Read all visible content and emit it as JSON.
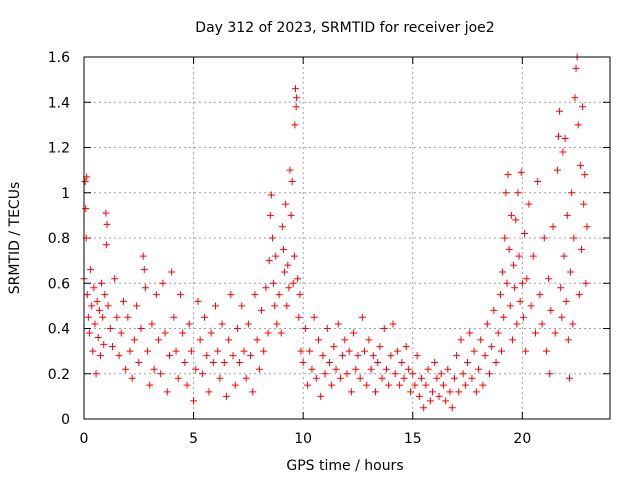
{
  "chart_data": {
    "type": "scatter",
    "title": "Day 312 of 2023, SRMTID for receiver joe2",
    "xlabel": "GPS time / hours",
    "ylabel": "SRMTID / TECUs",
    "xlim": [
      0,
      24
    ],
    "ylim": [
      0,
      1.6
    ],
    "x_ticks": [
      0,
      5,
      10,
      15,
      20
    ],
    "x_tick_labels": [
      "0",
      "5",
      "10",
      "15",
      "20"
    ],
    "y_ticks": [
      0,
      0.2,
      0.4,
      0.6,
      0.8,
      1.0,
      1.2,
      1.4,
      1.6
    ],
    "y_tick_labels": [
      "0",
      "0.2",
      "0.4",
      "0.6",
      "0.8",
      "1",
      "1.2",
      "1.4",
      "1.6"
    ],
    "grid": true,
    "marker": "plus",
    "color": "#ff0000",
    "series": [
      {
        "name": "SRMTID",
        "points": [
          [
            0.0,
            0.62
          ],
          [
            0.05,
            1.05
          ],
          [
            0.08,
            0.93
          ],
          [
            0.1,
            0.8
          ],
          [
            0.12,
            1.07
          ],
          [
            0.15,
            0.55
          ],
          [
            0.2,
            0.45
          ],
          [
            0.25,
            0.38
          ],
          [
            0.3,
            0.66
          ],
          [
            0.35,
            0.5
          ],
          [
            0.4,
            0.3
          ],
          [
            0.45,
            0.58
          ],
          [
            0.5,
            0.42
          ],
          [
            0.55,
            0.2
          ],
          [
            0.6,
            0.52
          ],
          [
            0.65,
            0.36
          ],
          [
            0.7,
            0.48
          ],
          [
            0.75,
            0.28
          ],
          [
            0.8,
            0.6
          ],
          [
            0.85,
            0.45
          ],
          [
            0.9,
            0.33
          ],
          [
            0.95,
            0.55
          ],
          [
            1.0,
            0.91
          ],
          [
            1.02,
            0.77
          ],
          [
            1.05,
            0.86
          ],
          [
            1.1,
            0.5
          ],
          [
            1.2,
            0.4
          ],
          [
            1.3,
            0.32
          ],
          [
            1.4,
            0.62
          ],
          [
            1.5,
            0.45
          ],
          [
            1.6,
            0.28
          ],
          [
            1.7,
            0.38
          ],
          [
            1.8,
            0.52
          ],
          [
            1.9,
            0.22
          ],
          [
            2.0,
            0.45
          ],
          [
            2.1,
            0.3
          ],
          [
            2.2,
            0.18
          ],
          [
            2.3,
            0.35
          ],
          [
            2.4,
            0.5
          ],
          [
            2.5,
            0.25
          ],
          [
            2.6,
            0.4
          ],
          [
            2.7,
            0.72
          ],
          [
            2.75,
            0.66
          ],
          [
            2.8,
            0.58
          ],
          [
            2.9,
            0.3
          ],
          [
            3.0,
            0.15
          ],
          [
            3.1,
            0.42
          ],
          [
            3.2,
            0.22
          ],
          [
            3.3,
            0.55
          ],
          [
            3.4,
            0.35
          ],
          [
            3.5,
            0.2
          ],
          [
            3.6,
            0.6
          ],
          [
            3.7,
            0.38
          ],
          [
            3.8,
            0.12
          ],
          [
            3.9,
            0.28
          ],
          [
            4.0,
            0.65
          ],
          [
            4.1,
            0.45
          ],
          [
            4.2,
            0.3
          ],
          [
            4.3,
            0.18
          ],
          [
            4.4,
            0.55
          ],
          [
            4.5,
            0.38
          ],
          [
            4.6,
            0.25
          ],
          [
            4.7,
            0.15
          ],
          [
            4.8,
            0.42
          ],
          [
            4.9,
            0.3
          ],
          [
            5.0,
            0.08
          ],
          [
            5.1,
            0.22
          ],
          [
            5.2,
            0.52
          ],
          [
            5.3,
            0.35
          ],
          [
            5.4,
            0.2
          ],
          [
            5.5,
            0.45
          ],
          [
            5.6,
            0.28
          ],
          [
            5.7,
            0.12
          ],
          [
            5.8,
            0.38
          ],
          [
            5.9,
            0.25
          ],
          [
            6.0,
            0.5
          ],
          [
            6.1,
            0.3
          ],
          [
            6.2,
            0.18
          ],
          [
            6.3,
            0.42
          ],
          [
            6.4,
            0.25
          ],
          [
            6.5,
            0.1
          ],
          [
            6.6,
            0.35
          ],
          [
            6.7,
            0.55
          ],
          [
            6.8,
            0.28
          ],
          [
            6.9,
            0.15
          ],
          [
            7.0,
            0.4
          ],
          [
            7.1,
            0.25
          ],
          [
            7.2,
            0.5
          ],
          [
            7.3,
            0.3
          ],
          [
            7.4,
            0.18
          ],
          [
            7.5,
            0.42
          ],
          [
            7.6,
            0.28
          ],
          [
            7.7,
            0.12
          ],
          [
            7.8,
            0.55
          ],
          [
            7.9,
            0.35
          ],
          [
            8.0,
            0.22
          ],
          [
            8.1,
            0.48
          ],
          [
            8.2,
            0.3
          ],
          [
            8.3,
            0.58
          ],
          [
            8.4,
            0.38
          ],
          [
            8.45,
            0.7
          ],
          [
            8.5,
            0.9
          ],
          [
            8.55,
            0.99
          ],
          [
            8.6,
            0.8
          ],
          [
            8.65,
            0.6
          ],
          [
            8.7,
            0.5
          ],
          [
            8.75,
            0.72
          ],
          [
            8.8,
            0.42
          ],
          [
            8.9,
            0.55
          ],
          [
            9.0,
            0.38
          ],
          [
            9.05,
            0.85
          ],
          [
            9.1,
            0.75
          ],
          [
            9.15,
            0.65
          ],
          [
            9.2,
            0.95
          ],
          [
            9.25,
            0.5
          ],
          [
            9.3,
            0.68
          ],
          [
            9.35,
            0.58
          ],
          [
            9.4,
            1.1
          ],
          [
            9.45,
            0.9
          ],
          [
            9.5,
            1.05
          ],
          [
            9.55,
            0.6
          ],
          [
            9.6,
            0.72
          ],
          [
            9.62,
            1.3
          ],
          [
            9.65,
            1.46
          ],
          [
            9.68,
            1.38
          ],
          [
            9.7,
            1.42
          ],
          [
            9.75,
            0.62
          ],
          [
            9.8,
            0.45
          ],
          [
            9.85,
            0.55
          ],
          [
            9.9,
            0.3
          ],
          [
            10.0,
            0.25
          ],
          [
            10.1,
            0.4
          ],
          [
            10.2,
            0.15
          ],
          [
            10.3,
            0.3
          ],
          [
            10.4,
            0.22
          ],
          [
            10.5,
            0.45
          ],
          [
            10.6,
            0.18
          ],
          [
            10.7,
            0.35
          ],
          [
            10.8,
            0.1
          ],
          [
            10.9,
            0.28
          ],
          [
            11.0,
            0.2
          ],
          [
            11.1,
            0.4
          ],
          [
            11.2,
            0.25
          ],
          [
            11.3,
            0.15
          ],
          [
            11.4,
            0.32
          ],
          [
            11.5,
            0.22
          ],
          [
            11.6,
            0.42
          ],
          [
            11.7,
            0.18
          ],
          [
            11.8,
            0.28
          ],
          [
            11.9,
            0.35
          ],
          [
            12.0,
            0.2
          ],
          [
            12.1,
            0.3
          ],
          [
            12.2,
            0.12
          ],
          [
            12.3,
            0.38
          ],
          [
            12.4,
            0.22
          ],
          [
            12.5,
            0.28
          ],
          [
            12.6,
            0.18
          ],
          [
            12.7,
            0.45
          ],
          [
            12.8,
            0.3
          ],
          [
            12.9,
            0.15
          ],
          [
            13.0,
            0.35
          ],
          [
            13.1,
            0.22
          ],
          [
            13.2,
            0.28
          ],
          [
            13.3,
            0.12
          ],
          [
            13.4,
            0.25
          ],
          [
            13.5,
            0.32
          ],
          [
            13.6,
            0.18
          ],
          [
            13.7,
            0.4
          ],
          [
            13.8,
            0.22
          ],
          [
            13.9,
            0.15
          ],
          [
            14.0,
            0.28
          ],
          [
            14.1,
            0.42
          ],
          [
            14.2,
            0.2
          ],
          [
            14.3,
            0.3
          ],
          [
            14.4,
            0.15
          ],
          [
            14.5,
            0.25
          ],
          [
            14.6,
            0.18
          ],
          [
            14.7,
            0.32
          ],
          [
            14.8,
            0.22
          ],
          [
            14.9,
            0.12
          ],
          [
            15.0,
            0.2
          ],
          [
            15.1,
            0.15
          ],
          [
            15.2,
            0.28
          ],
          [
            15.3,
            0.1
          ],
          [
            15.4,
            0.18
          ],
          [
            15.5,
            0.05
          ],
          [
            15.6,
            0.15
          ],
          [
            15.7,
            0.22
          ],
          [
            15.8,
            0.08
          ],
          [
            15.9,
            0.12
          ],
          [
            16.0,
            0.25
          ],
          [
            16.1,
            0.18
          ],
          [
            16.2,
            0.1
          ],
          [
            16.3,
            0.2
          ],
          [
            16.4,
            0.15
          ],
          [
            16.5,
            0.08
          ],
          [
            16.6,
            0.22
          ],
          [
            16.7,
            0.12
          ],
          [
            16.8,
            0.05
          ],
          [
            16.9,
            0.18
          ],
          [
            17.0,
            0.28
          ],
          [
            17.1,
            0.12
          ],
          [
            17.2,
            0.35
          ],
          [
            17.3,
            0.2
          ],
          [
            17.4,
            0.15
          ],
          [
            17.5,
            0.25
          ],
          [
            17.6,
            0.38
          ],
          [
            17.7,
            0.18
          ],
          [
            17.8,
            0.3
          ],
          [
            17.9,
            0.12
          ],
          [
            18.0,
            0.22
          ],
          [
            18.1,
            0.35
          ],
          [
            18.2,
            0.15
          ],
          [
            18.3,
            0.28
          ],
          [
            18.4,
            0.42
          ],
          [
            18.5,
            0.2
          ],
          [
            18.6,
            0.32
          ],
          [
            18.7,
            0.48
          ],
          [
            18.8,
            0.25
          ],
          [
            18.9,
            0.38
          ],
          [
            19.0,
            0.55
          ],
          [
            19.05,
            0.3
          ],
          [
            19.1,
            0.65
          ],
          [
            19.15,
            0.45
          ],
          [
            19.2,
            0.8
          ],
          [
            19.25,
            1.0
          ],
          [
            19.3,
            0.6
          ],
          [
            19.35,
            1.08
          ],
          [
            19.4,
            0.75
          ],
          [
            19.45,
            0.5
          ],
          [
            19.5,
            0.9
          ],
          [
            19.55,
            0.35
          ],
          [
            19.6,
            0.68
          ],
          [
            19.65,
            0.58
          ],
          [
            19.7,
            0.88
          ],
          [
            19.75,
            0.42
          ],
          [
            19.8,
            1.0
          ],
          [
            19.85,
            0.72
          ],
          [
            19.9,
            0.52
          ],
          [
            19.95,
            1.09
          ],
          [
            20.0,
            0.6
          ],
          [
            20.05,
            0.45
          ],
          [
            20.1,
            0.82
          ],
          [
            20.15,
            0.3
          ],
          [
            20.2,
            0.62
          ],
          [
            20.3,
            0.95
          ],
          [
            20.4,
            0.5
          ],
          [
            20.5,
            0.72
          ],
          [
            20.6,
            0.38
          ],
          [
            20.7,
            1.05
          ],
          [
            20.8,
            0.55
          ],
          [
            20.9,
            0.42
          ],
          [
            21.0,
            0.8
          ],
          [
            21.1,
            0.3
          ],
          [
            21.2,
            0.62
          ],
          [
            21.25,
            0.2
          ],
          [
            21.3,
            0.48
          ],
          [
            21.4,
            0.85
          ],
          [
            21.5,
            0.38
          ],
          [
            21.6,
            1.1
          ],
          [
            21.65,
            1.25
          ],
          [
            21.7,
            1.36
          ],
          [
            21.75,
            0.58
          ],
          [
            21.8,
            0.45
          ],
          [
            21.85,
            1.18
          ],
          [
            21.9,
            0.72
          ],
          [
            21.95,
            1.24
          ],
          [
            22.0,
            0.52
          ],
          [
            22.05,
            0.9
          ],
          [
            22.1,
            0.35
          ],
          [
            22.15,
            0.18
          ],
          [
            22.2,
            0.65
          ],
          [
            22.25,
            1.0
          ],
          [
            22.3,
            0.42
          ],
          [
            22.35,
            0.8
          ],
          [
            22.4,
            1.42
          ],
          [
            22.45,
            1.55
          ],
          [
            22.5,
            1.6
          ],
          [
            22.55,
            1.3
          ],
          [
            22.6,
            0.55
          ],
          [
            22.65,
            1.12
          ],
          [
            22.7,
            0.75
          ],
          [
            22.75,
            1.38
          ],
          [
            22.8,
            0.95
          ],
          [
            22.85,
            1.08
          ],
          [
            22.9,
            0.6
          ],
          [
            22.95,
            0.85
          ]
        ]
      }
    ]
  }
}
